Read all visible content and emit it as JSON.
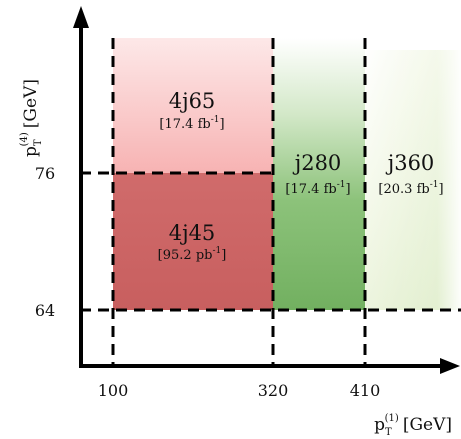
{
  "diagram": {
    "axes": {
      "x": {
        "title_main": "p",
        "title_sub": "T",
        "title_sup": "(1)",
        "title_unit": "[GeV]",
        "ticks": [
          "100",
          "320",
          "410"
        ]
      },
      "y": {
        "title_main": "p",
        "title_sub": "T",
        "title_sup": "(4)",
        "title_unit": "[GeV]",
        "ticks": [
          "64",
          "76"
        ]
      }
    },
    "regions": [
      {
        "id": "4j65",
        "name": "4j65",
        "lumi_pre": "[17.4 fb",
        "lumi_exp": "-1",
        "lumi_post": "]",
        "color": "#f7b5b5"
      },
      {
        "id": "4j45",
        "name": "4j45",
        "lumi_pre": "[95.2 pb",
        "lumi_exp": "-1",
        "lumi_post": "]",
        "color": "#cd6969"
      },
      {
        "id": "j280",
        "name": "j280",
        "lumi_pre": "[17.4 fb",
        "lumi_exp": "-1",
        "lumi_post": "]",
        "color": "#7ab868"
      },
      {
        "id": "j360",
        "name": "j360",
        "lumi_pre": "[20.3 fb",
        "lumi_exp": "-1",
        "lumi_post": "]",
        "color": "#d5e8bb"
      }
    ]
  }
}
